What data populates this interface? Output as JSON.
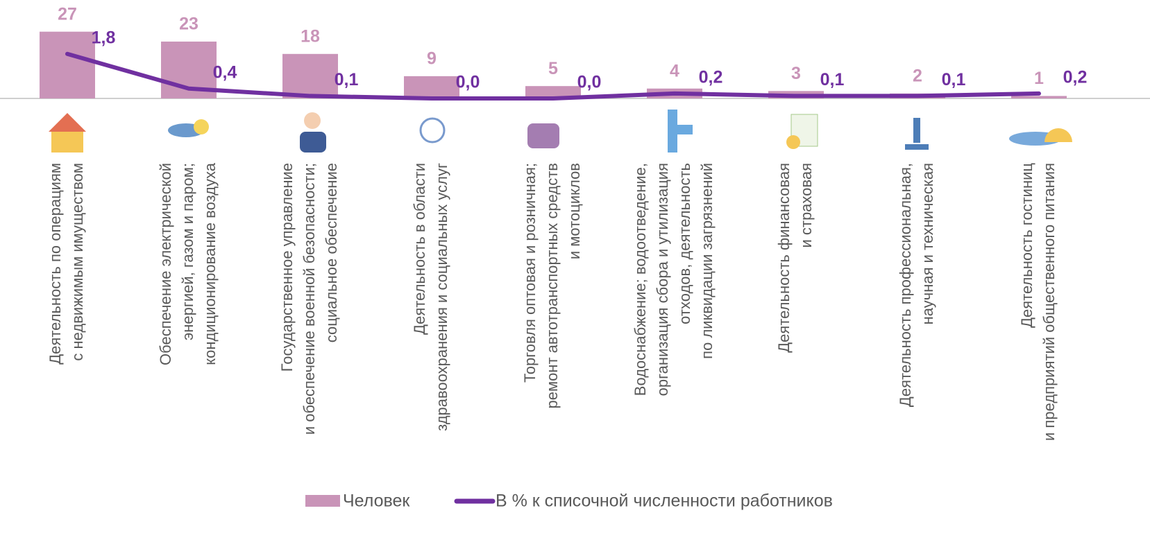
{
  "chart_data": {
    "type": "bar",
    "categories": [
      [
        "Деятельность по операциям",
        "с недвижимым имуществом"
      ],
      [
        "Обеспечение электрической",
        "энергией, газом и паром;",
        "кондиционирование воздуха"
      ],
      [
        "Государственное управление",
        "и обеспечение военной безопасности;",
        "социальное обеспечение"
      ],
      [
        "Деятельность в области",
        "здравоохранения и социальных услуг"
      ],
      [
        "Торговля оптовая и розничная;",
        "ремонт автотранспортных средств",
        "и мотоциклов"
      ],
      [
        "Водоснабжение; водоотведение,",
        "организация сбора и утилизация",
        "отходов, деятельность",
        "по ликвидации загрязнений"
      ],
      [
        "Деятельность финансовая",
        "и страховая"
      ],
      [
        "Деятельность профессиональная,",
        "научная и техническая"
      ],
      [
        "Деятельность гостиниц",
        "и предприятий общественного питания"
      ]
    ],
    "series": [
      {
        "name": "Человек",
        "type": "bar",
        "color": "#c994b8",
        "values": [
          27,
          23,
          18,
          9,
          5,
          4,
          3,
          2,
          1
        ]
      },
      {
        "name": "В % к списочной численности работников",
        "type": "line",
        "axis": "y2",
        "color": "#7030a0",
        "values": [
          1.8,
          0.4,
          0.1,
          0.0,
          0.0,
          0.2,
          0.1,
          0.1,
          0.2
        ],
        "value_labels": [
          "1,8",
          "0,4",
          "0,1",
          "0,0",
          "0,0",
          "0,2",
          "0,1",
          "0,1",
          "0,2"
        ]
      }
    ],
    "ylim": [
      0,
      30
    ],
    "y2lim": [
      0,
      3
    ],
    "legend": "bottom"
  }
}
